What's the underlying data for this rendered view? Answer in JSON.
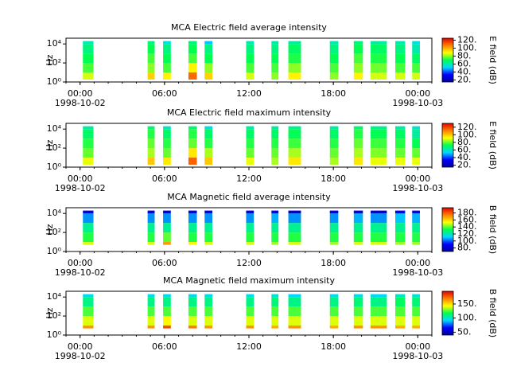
{
  "chart_data": [
    {
      "type": "heatmap",
      "title": "MCA  Electric field average intensity",
      "ylabel": "Hz",
      "colorbar_label": "E field (dB)",
      "xlim": [
        -1,
        25
      ],
      "xticks": [
        {
          "value": 0,
          "label": "00:00"
        },
        {
          "value": 6,
          "label": "06:00"
        },
        {
          "value": 12,
          "label": "12:00"
        },
        {
          "value": 18,
          "label": "18:00"
        },
        {
          "value": 24,
          "label": "00:00"
        }
      ],
      "xtick_sublabels": [
        {
          "value": 0,
          "label": "1998-10-02"
        },
        {
          "value": 24,
          "label": "1998-10-03"
        }
      ],
      "ylog": true,
      "ylim": [
        1,
        40000
      ],
      "yticks": [
        {
          "value": 1,
          "label": "10⁰"
        },
        {
          "value": 100,
          "label": "10²"
        },
        {
          "value": 10000,
          "label": "10⁴"
        }
      ],
      "clim": [
        15,
        125
      ],
      "cticks": [
        {
          "value": 20,
          "label": "20."
        },
        {
          "value": 40,
          "label": "40."
        },
        {
          "value": 60,
          "label": "60."
        },
        {
          "value": 80,
          "label": "80."
        },
        {
          "value": 100,
          "label": "100."
        },
        {
          "value": 120,
          "label": "120."
        }
      ],
      "colormap": [
        "#00009c",
        "#0000ff",
        "#00d8ff",
        "#00ff50",
        "#ffff00",
        "#ff8000",
        "#e00000"
      ],
      "y_edges": [
        1.8,
        10,
        100,
        1000,
        10000,
        20000
      ],
      "segments": [
        [
          0.2,
          0.95
        ],
        [
          4.8,
          5.3
        ],
        [
          5.9,
          6.45
        ],
        [
          7.7,
          8.3
        ],
        [
          8.85,
          9.4
        ],
        [
          11.8,
          12.35
        ],
        [
          13.6,
          14.1
        ],
        [
          14.8,
          15.7
        ],
        [
          17.75,
          18.35
        ],
        [
          19.45,
          20.1
        ],
        [
          20.65,
          21.8
        ],
        [
          22.4,
          23.1
        ],
        [
          23.6,
          24.15
        ]
      ],
      "values": [
        [
          85,
          75,
          70,
          65,
          60
        ],
        [
          95,
          80,
          75,
          70,
          65
        ],
        [
          90,
          75,
          70,
          65,
          55
        ],
        [
          110,
          90,
          75,
          70,
          65
        ],
        [
          95,
          80,
          70,
          65,
          50
        ],
        [
          85,
          75,
          70,
          65,
          60
        ],
        [
          80,
          75,
          70,
          65,
          60
        ],
        [
          90,
          80,
          72,
          68,
          62
        ],
        [
          80,
          75,
          70,
          65,
          60
        ],
        [
          90,
          80,
          75,
          70,
          65
        ],
        [
          85,
          78,
          72,
          68,
          62
        ],
        [
          85,
          75,
          70,
          65,
          60
        ],
        [
          85,
          75,
          68,
          60,
          55
        ]
      ]
    },
    {
      "type": "heatmap",
      "title": "MCA  Electric field maximum intensity",
      "ylabel": "Hz",
      "colorbar_label": "E field (dB)",
      "xlim": [
        -1,
        25
      ],
      "xticks": [
        {
          "value": 0,
          "label": "00:00"
        },
        {
          "value": 6,
          "label": "06:00"
        },
        {
          "value": 12,
          "label": "12:00"
        },
        {
          "value": 18,
          "label": "18:00"
        },
        {
          "value": 24,
          "label": "00:00"
        }
      ],
      "xtick_sublabels": [
        {
          "value": 0,
          "label": "1998-10-02"
        },
        {
          "value": 24,
          "label": "1998-10-03"
        }
      ],
      "ylog": true,
      "ylim": [
        1,
        40000
      ],
      "yticks": [
        {
          "value": 1,
          "label": "10⁰"
        },
        {
          "value": 100,
          "label": "10²"
        },
        {
          "value": 10000,
          "label": "10⁴"
        }
      ],
      "clim": [
        15,
        130
      ],
      "cticks": [
        {
          "value": 20,
          "label": "20."
        },
        {
          "value": 40,
          "label": "40."
        },
        {
          "value": 60,
          "label": "60."
        },
        {
          "value": 80,
          "label": "80."
        },
        {
          "value": 100,
          "label": "100."
        },
        {
          "value": 120,
          "label": "120."
        }
      ],
      "colormap": [
        "#00009c",
        "#0000ff",
        "#00d8ff",
        "#00ff50",
        "#ffff00",
        "#ff8000",
        "#e00000"
      ],
      "y_edges": [
        1.8,
        10,
        100,
        1000,
        10000,
        20000
      ],
      "segments": [
        [
          0.2,
          0.95
        ],
        [
          4.8,
          5.3
        ],
        [
          5.9,
          6.45
        ],
        [
          7.7,
          8.3
        ],
        [
          8.85,
          9.4
        ],
        [
          11.8,
          12.35
        ],
        [
          13.6,
          14.1
        ],
        [
          14.8,
          15.7
        ],
        [
          17.75,
          18.35
        ],
        [
          19.45,
          20.1
        ],
        [
          20.65,
          21.8
        ],
        [
          22.4,
          23.1
        ],
        [
          23.6,
          24.15
        ]
      ],
      "values": [
        [
          90,
          80,
          75,
          70,
          62
        ],
        [
          100,
          85,
          80,
          75,
          68
        ],
        [
          95,
          80,
          75,
          70,
          58
        ],
        [
          115,
          95,
          80,
          75,
          68
        ],
        [
          100,
          85,
          75,
          70,
          55
        ],
        [
          90,
          80,
          75,
          70,
          62
        ],
        [
          85,
          80,
          75,
          70,
          62
        ],
        [
          95,
          85,
          77,
          72,
          65
        ],
        [
          85,
          80,
          75,
          70,
          62
        ],
        [
          95,
          85,
          80,
          75,
          68
        ],
        [
          90,
          82,
          77,
          72,
          65
        ],
        [
          90,
          80,
          75,
          70,
          62
        ],
        [
          90,
          80,
          72,
          64,
          58
        ]
      ]
    },
    {
      "type": "heatmap",
      "title": "MCA  Magnetic field average intensity",
      "ylabel": "Hz",
      "colorbar_label": "B field (dB)",
      "xlim": [
        -1,
        25
      ],
      "xticks": [
        {
          "value": 0,
          "label": "00:00"
        },
        {
          "value": 6,
          "label": "06:00"
        },
        {
          "value": 12,
          "label": "12:00"
        },
        {
          "value": 18,
          "label": "18:00"
        },
        {
          "value": 24,
          "label": "00:00"
        }
      ],
      "xtick_sublabels": [
        {
          "value": 0,
          "label": "1998-10-02"
        },
        {
          "value": 24,
          "label": "1998-10-03"
        }
      ],
      "ylog": true,
      "ylim": [
        1,
        40000
      ],
      "yticks": [
        {
          "value": 1,
          "label": "10⁰"
        },
        {
          "value": 100,
          "label": "10²"
        },
        {
          "value": 10000,
          "label": "10⁴"
        }
      ],
      "clim": [
        70,
        195
      ],
      "cticks": [
        {
          "value": 80,
          "label": "80."
        },
        {
          "value": 100,
          "label": "100."
        },
        {
          "value": 120,
          "label": "120."
        },
        {
          "value": 140,
          "label": "140."
        },
        {
          "value": 160,
          "label": "160."
        },
        {
          "value": 180,
          "label": "180."
        }
      ],
      "colormap": [
        "#00009c",
        "#0000ff",
        "#00d8ff",
        "#00ff50",
        "#ffff00",
        "#ff8000",
        "#e00000"
      ],
      "y_edges": [
        5,
        10,
        100,
        1000,
        10000,
        20000
      ],
      "segments": [
        [
          0.2,
          0.95
        ],
        [
          4.8,
          5.3
        ],
        [
          5.9,
          6.45
        ],
        [
          7.7,
          8.3
        ],
        [
          8.85,
          9.4
        ],
        [
          11.8,
          12.35
        ],
        [
          13.6,
          14.1
        ],
        [
          14.8,
          15.7
        ],
        [
          17.75,
          18.35
        ],
        [
          19.45,
          20.1
        ],
        [
          20.65,
          21.8
        ],
        [
          22.4,
          23.1
        ],
        [
          23.6,
          24.15
        ]
      ],
      "values": [
        [
          150,
          135,
          125,
          105,
          85
        ],
        [
          150,
          135,
          125,
          105,
          85
        ],
        [
          170,
          140,
          125,
          105,
          85
        ],
        [
          155,
          135,
          125,
          105,
          85
        ],
        [
          150,
          135,
          125,
          105,
          85
        ],
        [
          150,
          135,
          125,
          105,
          85
        ],
        [
          145,
          135,
          125,
          108,
          88
        ],
        [
          150,
          135,
          125,
          105,
          82
        ],
        [
          145,
          135,
          125,
          105,
          85
        ],
        [
          150,
          135,
          125,
          108,
          85
        ],
        [
          150,
          135,
          125,
          105,
          82
        ],
        [
          145,
          135,
          125,
          110,
          90
        ],
        [
          145,
          135,
          125,
          108,
          88
        ]
      ]
    },
    {
      "type": "heatmap",
      "title": "MCA  Magnetic field maximum intensity",
      "ylabel": "Hz",
      "colorbar_label": "B field (dB)",
      "xlim": [
        -1,
        25
      ],
      "xticks": [
        {
          "value": 0,
          "label": "00:00"
        },
        {
          "value": 6,
          "label": "06:00"
        },
        {
          "value": 12,
          "label": "12:00"
        },
        {
          "value": 18,
          "label": "18:00"
        },
        {
          "value": 24,
          "label": "00:00"
        }
      ],
      "xtick_sublabels": [
        {
          "value": 0,
          "label": "1998-10-02"
        },
        {
          "value": 24,
          "label": "1998-10-03"
        }
      ],
      "ylog": true,
      "ylim": [
        1,
        40000
      ],
      "yticks": [
        {
          "value": 1,
          "label": "10⁰"
        },
        {
          "value": 100,
          "label": "10²"
        },
        {
          "value": 10000,
          "label": "10⁴"
        }
      ],
      "clim": [
        40,
        195
      ],
      "cticks": [
        {
          "value": 50,
          "label": "50."
        },
        {
          "value": 100,
          "label": "100."
        },
        {
          "value": 150,
          "label": "150."
        }
      ],
      "colormap": [
        "#00009c",
        "#0000ff",
        "#00d8ff",
        "#00ff50",
        "#ffff00",
        "#ff8000",
        "#e00000"
      ],
      "y_edges": [
        5,
        10,
        100,
        1000,
        10000,
        20000
      ],
      "segments": [
        [
          0.2,
          0.95
        ],
        [
          4.8,
          5.3
        ],
        [
          5.9,
          6.45
        ],
        [
          7.7,
          8.3
        ],
        [
          8.85,
          9.4
        ],
        [
          11.8,
          12.35
        ],
        [
          13.6,
          14.1
        ],
        [
          14.8,
          15.7
        ],
        [
          17.75,
          18.35
        ],
        [
          19.45,
          20.1
        ],
        [
          20.65,
          21.8
        ],
        [
          22.4,
          23.1
        ],
        [
          23.6,
          24.15
        ]
      ],
      "values": [
        [
          165,
          140,
          125,
          110,
          95
        ],
        [
          165,
          140,
          125,
          110,
          95
        ],
        [
          180,
          145,
          125,
          110,
          95
        ],
        [
          170,
          140,
          125,
          110,
          95
        ],
        [
          165,
          140,
          125,
          110,
          95
        ],
        [
          165,
          140,
          125,
          110,
          95
        ],
        [
          160,
          140,
          125,
          112,
          98
        ],
        [
          165,
          140,
          125,
          110,
          92
        ],
        [
          160,
          140,
          125,
          110,
          95
        ],
        [
          165,
          140,
          125,
          112,
          95
        ],
        [
          165,
          140,
          125,
          110,
          92
        ],
        [
          160,
          140,
          125,
          115,
          100
        ],
        [
          160,
          140,
          125,
          112,
          98
        ]
      ]
    }
  ]
}
